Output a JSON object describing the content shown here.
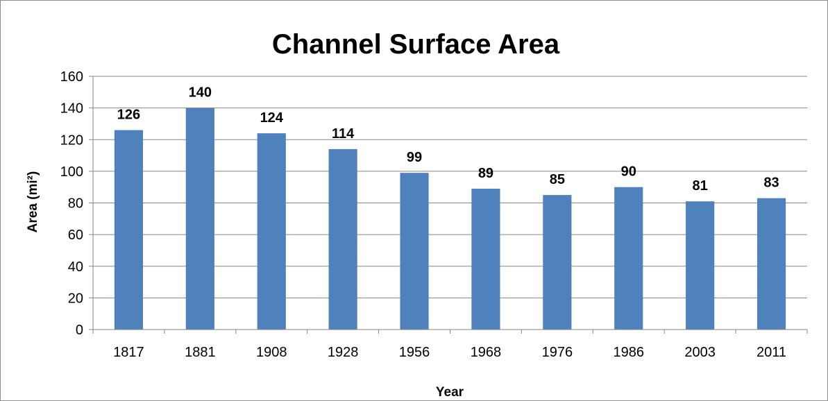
{
  "chart_data": {
    "type": "bar",
    "title": "Channel Surface Area",
    "xlabel": "Year",
    "ylabel": "Area  (mi²)",
    "categories": [
      "1817",
      "1881",
      "1908",
      "1928",
      "1956",
      "1968",
      "1976",
      "1986",
      "2003",
      "2011"
    ],
    "values": [
      126,
      140,
      124,
      114,
      99,
      89,
      85,
      90,
      81,
      83
    ],
    "data_labels": [
      "126",
      "140",
      "124",
      "114",
      "99",
      "89",
      "85",
      "90",
      "81",
      "83"
    ],
    "ylim": [
      0,
      160
    ],
    "yticks": [
      0,
      20,
      40,
      60,
      80,
      100,
      120,
      140,
      160
    ],
    "grid": true,
    "legend": "none",
    "bar_color": "#4f81bd",
    "grid_color": "#868686"
  }
}
